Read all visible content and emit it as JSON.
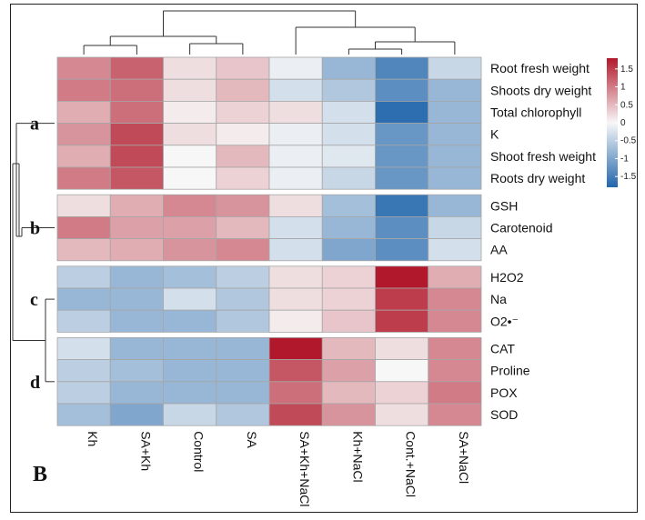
{
  "panel_label": "B",
  "chart_data": {
    "type": "heatmap",
    "columns": [
      "Kh",
      "SA+Kh",
      "Control",
      "SA",
      "SA+Kh+NaCl",
      "Kh+NaCl",
      "Cont.+NaCl",
      "SA+NaCl"
    ],
    "rows": [
      "Root fresh weight",
      "Shoots dry weight",
      "Total chlorophyll",
      "K",
      "Shoot fresh weight",
      "Roots dry weight",
      "GSH",
      "Carotenoid",
      "AA",
      "H2O2",
      "Na",
      "O2•⁻",
      "CAT",
      "Proline",
      "POX",
      "SOD"
    ],
    "row_groups": [
      {
        "label": "a",
        "rows": [
          0,
          1,
          2,
          3,
          4,
          5
        ]
      },
      {
        "label": "b",
        "rows": [
          6,
          7,
          8
        ]
      },
      {
        "label": "c",
        "rows": [
          9,
          10,
          11
        ]
      },
      {
        "label": "d",
        "rows": [
          12,
          13,
          14,
          15
        ]
      }
    ],
    "values": [
      [
        0.9,
        1.2,
        0.2,
        0.4,
        -0.1,
        -0.8,
        -1.4,
        -0.4
      ],
      [
        1.0,
        1.1,
        0.2,
        0.5,
        -0.3,
        -0.6,
        -1.3,
        -0.8
      ],
      [
        0.6,
        1.1,
        0.1,
        0.3,
        0.2,
        -0.3,
        -1.7,
        -0.8
      ],
      [
        0.8,
        1.4,
        0.2,
        0.1,
        -0.1,
        -0.3,
        -1.2,
        -0.8
      ],
      [
        0.6,
        1.4,
        0.0,
        0.5,
        -0.1,
        -0.2,
        -1.2,
        -0.8
      ],
      [
        1.0,
        1.3,
        0.0,
        0.3,
        -0.1,
        -0.4,
        -1.2,
        -0.8
      ],
      [
        0.2,
        0.6,
        0.9,
        0.8,
        0.2,
        -0.7,
        -1.6,
        -0.8
      ],
      [
        1.0,
        0.7,
        0.7,
        0.5,
        -0.3,
        -0.8,
        -1.3,
        -0.4
      ],
      [
        0.5,
        0.6,
        0.8,
        0.9,
        -0.3,
        -1.0,
        -1.3,
        -0.3
      ],
      [
        -0.5,
        -0.8,
        -0.7,
        -0.5,
        0.2,
        0.3,
        1.8,
        0.6
      ],
      [
        -0.8,
        -0.8,
        -0.3,
        -0.6,
        0.2,
        0.3,
        1.5,
        0.9
      ],
      [
        -0.5,
        -0.8,
        -0.8,
        -0.6,
        0.1,
        0.4,
        1.5,
        0.9
      ],
      [
        -0.3,
        -0.8,
        -0.8,
        -0.8,
        1.9,
        0.5,
        0.2,
        0.9
      ],
      [
        -0.5,
        -0.7,
        -0.8,
        -0.8,
        1.3,
        0.7,
        0.0,
        0.9
      ],
      [
        -0.5,
        -0.8,
        -0.8,
        -0.8,
        1.1,
        0.5,
        0.3,
        1.0
      ],
      [
        -0.7,
        -1.0,
        -0.4,
        -0.6,
        1.4,
        0.8,
        0.2,
        0.9
      ]
    ],
    "color_scale": {
      "min": -1.8,
      "max": 1.8,
      "low_color": "#2166ac",
      "mid_color": "#f7f7f7",
      "high_color": "#b2182b",
      "ticks": [
        {
          "label": "1.5",
          "value": 1.5
        },
        {
          "label": "1",
          "value": 1
        },
        {
          "label": "0.5",
          "value": 0.5
        },
        {
          "label": "0",
          "value": 0
        },
        {
          "label": "-0.5",
          "value": -0.5
        },
        {
          "label": "-1",
          "value": -1
        },
        {
          "label": "-1.5",
          "value": -1.5
        }
      ]
    },
    "legend_position": "top-right"
  }
}
